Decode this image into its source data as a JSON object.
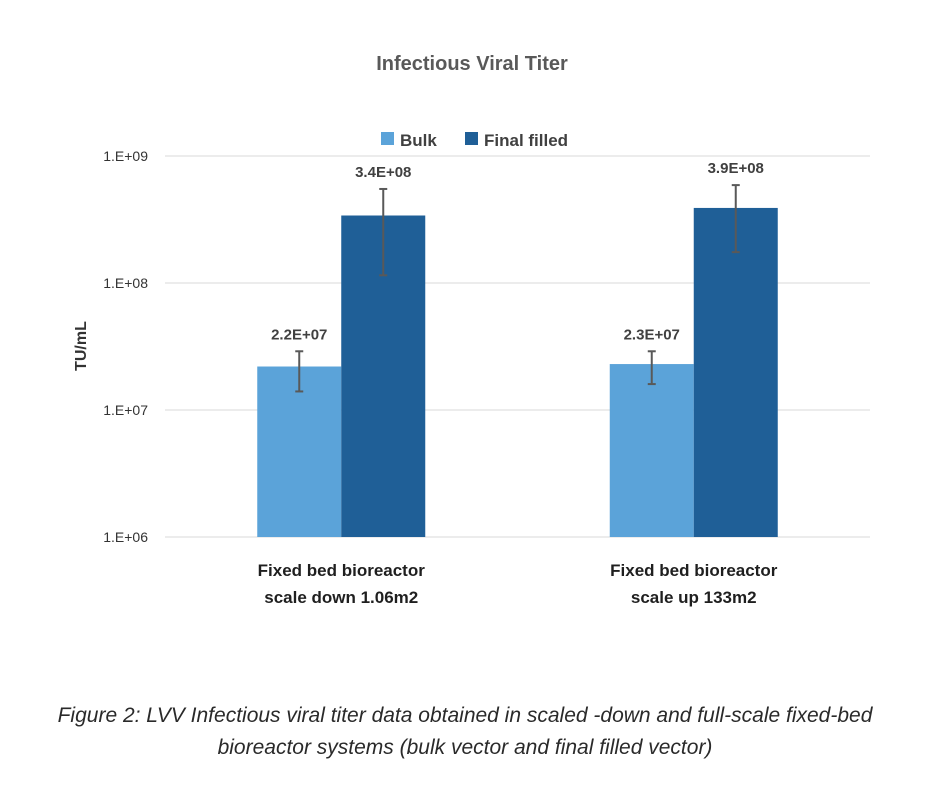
{
  "chart_data": {
    "type": "bar",
    "title": "Infectious Viral Titer",
    "ylabel": "TU/mL",
    "xlabel": "",
    "scale": "log",
    "ylim": [
      1000000,
      1000000000
    ],
    "yticks": [
      1000000,
      10000000,
      100000000,
      1000000000
    ],
    "ytick_labels": [
      "1.E+06",
      "1.E+07",
      "1.E+08",
      "1.E+09"
    ],
    "grid": true,
    "legend_position": "top-center",
    "categories": [
      [
        "Fixed bed bioreactor",
        "scale down 1.06m2"
      ],
      [
        "Fixed bed bioreactor",
        "scale up 133m2"
      ]
    ],
    "series": [
      {
        "name": "Bulk",
        "color": "#5ba3d9",
        "values": [
          22000000,
          23000000
        ],
        "labels": [
          "2.2E+07",
          "2.3E+07"
        ],
        "error_low": [
          14000000,
          16000000
        ],
        "error_high": [
          29000000,
          29000000
        ]
      },
      {
        "name": "Final filled",
        "color": "#1f5f97",
        "values": [
          340000000,
          390000000
        ],
        "labels": [
          "3.4E+08",
          "3.9E+08"
        ],
        "error_low": [
          115000000,
          175000000
        ],
        "error_high": [
          550000000,
          590000000
        ]
      }
    ]
  },
  "caption": {
    "line1": "Figure 2:  LVV Infectious viral titer data obtained in scaled -down and full-scale fixed-bed",
    "line2": "bioreactor systems (bulk vector and final filled vector)"
  }
}
